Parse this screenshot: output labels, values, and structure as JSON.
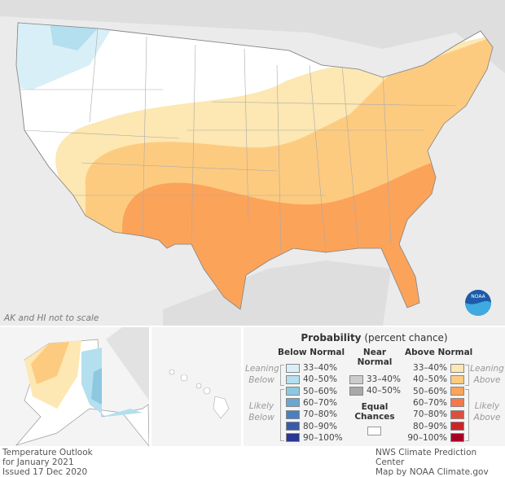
{
  "map": {
    "note": "AK and HI not to scale",
    "logo": "NOAA"
  },
  "legend": {
    "title_bold": "Probability",
    "title_rest": " (percent chance)",
    "below": {
      "header": "Below Normal",
      "leaning": "Leaning Below",
      "likely": "Likely Below",
      "items": [
        {
          "label": "33–40%",
          "color": "#d9eff7"
        },
        {
          "label": "40–50%",
          "color": "#b3dfee"
        },
        {
          "label": "50–60%",
          "color": "#8ec8e0"
        },
        {
          "label": "60–70%",
          "color": "#6aa6d0"
        },
        {
          "label": "70–80%",
          "color": "#4b7fbf"
        },
        {
          "label": "80–90%",
          "color": "#3a5aa8"
        },
        {
          "label": "90–100%",
          "color": "#2b3593"
        }
      ]
    },
    "near": {
      "header1": "Near",
      "header2": "Normal",
      "items": [
        {
          "label": "33–40%",
          "color": "#cccccc"
        },
        {
          "label": "40–50%",
          "color": "#a8a8a8"
        }
      ]
    },
    "equal": {
      "header1": "Equal",
      "header2": "Chances",
      "color": "#ffffff"
    },
    "above": {
      "header": "Above Normal",
      "leaning": "Leaning Above",
      "likely": "Likely Above",
      "items": [
        {
          "label": "33–40%",
          "color": "#fde7b2"
        },
        {
          "label": "40–50%",
          "color": "#fdcb80"
        },
        {
          "label": "50–60%",
          "color": "#fca35a"
        },
        {
          "label": "60–70%",
          "color": "#f6774a"
        },
        {
          "label": "70–80%",
          "color": "#e04e3b"
        },
        {
          "label": "80–90%",
          "color": "#cc2329"
        },
        {
          "label": "90–100%",
          "color": "#a50026"
        }
      ]
    }
  },
  "footer": {
    "left": [
      "Temperature Outlook",
      "for January 2021",
      "Issued 17 Dec 2020"
    ],
    "right": [
      "NWS Climate Prediction Center",
      "Map by NOAA Climate.gov"
    ]
  }
}
